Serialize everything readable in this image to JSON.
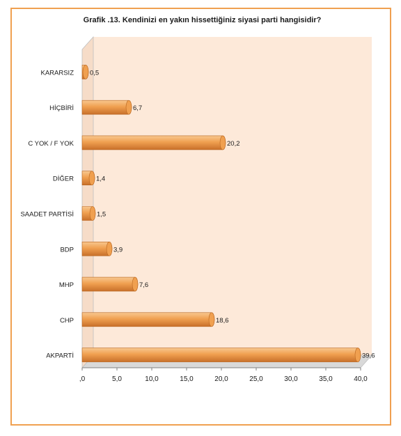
{
  "chart_data": {
    "type": "bar",
    "orientation": "horizontal",
    "title": "Grafik .13. Kendinizi en yakın hissettiğiniz siyasi parti hangisidir?",
    "categories": [
      "KARARSIZ",
      "HİÇBİRİ",
      "C YOK / F YOK",
      "DİĞER",
      "SAADET PARTİSİ",
      "BDP",
      "MHP",
      "CHP",
      "AKPARTİ"
    ],
    "values": [
      0.5,
      6.7,
      20.2,
      1.4,
      1.5,
      3.9,
      7.6,
      18.6,
      39.6
    ],
    "value_labels": [
      "0,5",
      "6,7",
      "20,2",
      "1,4",
      "1,5",
      "3,9",
      "7,6",
      "18,6",
      "39,6"
    ],
    "x_ticks": [
      0,
      5,
      10,
      15,
      20,
      25,
      30,
      35,
      40
    ],
    "x_tick_labels": [
      ",0",
      "5,0",
      "10,0",
      "15,0",
      "20,0",
      "25,0",
      "30,0",
      "35,0",
      "40,0"
    ],
    "xlim": [
      0,
      40
    ],
    "xlabel": "",
    "ylabel": "",
    "grid": false,
    "legend": "none",
    "colors": {
      "bar": "#f0a050",
      "bar_dark": "#c8702a",
      "bar_light": "#f8c890",
      "plot_back": "#fde9d9",
      "plot_floor": "#d9d9d9",
      "frame": "#f0a050"
    }
  }
}
